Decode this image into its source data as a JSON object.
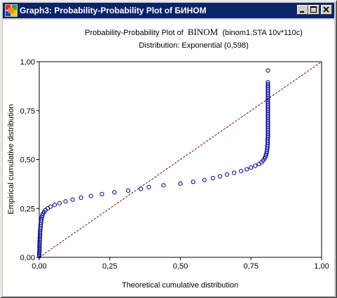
{
  "window": {
    "title": "Graph3: Probability-Probability Plot of БИНОМ",
    "buttons": {
      "minimize": "minimize-icon",
      "maximize": "maximize-icon",
      "close": "close-icon"
    }
  },
  "chart_data": {
    "type": "scatter",
    "title_prefix": "Probability-Probability Plot of",
    "title_series": "BINOM",
    "title_suffix": "(binom1.STA 10v*110c)",
    "subtitle": "Distribution: Exponential (0,598)",
    "xlabel": "Theoretical cumulative distribution",
    "ylabel": "Empirical cumulative distribution",
    "xlim": [
      0,
      1
    ],
    "ylim": [
      0,
      1
    ],
    "xticks": [
      "0,00",
      "0,25",
      "0,50",
      "0,75",
      "1,00"
    ],
    "yticks": [
      "0,00",
      "0,25",
      "0,50",
      "0,75",
      "1,00"
    ],
    "reference_line": {
      "from": [
        0,
        0
      ],
      "to": [
        1,
        1
      ],
      "style": "dashed",
      "color": "#800000"
    },
    "marker_color": "#00008b",
    "points": [
      [
        0.0,
        0.005
      ],
      [
        0.0,
        0.014
      ],
      [
        0.0,
        0.023
      ],
      [
        0.001,
        0.032
      ],
      [
        0.001,
        0.041
      ],
      [
        0.001,
        0.05
      ],
      [
        0.001,
        0.059
      ],
      [
        0.001,
        0.068
      ],
      [
        0.001,
        0.077
      ],
      [
        0.002,
        0.086
      ],
      [
        0.002,
        0.095
      ],
      [
        0.002,
        0.105
      ],
      [
        0.003,
        0.114
      ],
      [
        0.003,
        0.123
      ],
      [
        0.003,
        0.132
      ],
      [
        0.004,
        0.141
      ],
      [
        0.004,
        0.15
      ],
      [
        0.005,
        0.159
      ],
      [
        0.005,
        0.168
      ],
      [
        0.006,
        0.177
      ],
      [
        0.007,
        0.186
      ],
      [
        0.008,
        0.195
      ],
      [
        0.009,
        0.205
      ],
      [
        0.011,
        0.214
      ],
      [
        0.013,
        0.223
      ],
      [
        0.017,
        0.232
      ],
      [
        0.022,
        0.241
      ],
      [
        0.03,
        0.25
      ],
      [
        0.04,
        0.259
      ],
      [
        0.055,
        0.268
      ],
      [
        0.072,
        0.277
      ],
      [
        0.093,
        0.286
      ],
      [
        0.118,
        0.295
      ],
      [
        0.148,
        0.305
      ],
      [
        0.183,
        0.314
      ],
      [
        0.222,
        0.323
      ],
      [
        0.266,
        0.332
      ],
      [
        0.315,
        0.341
      ],
      [
        0.36,
        0.35
      ],
      [
        0.388,
        0.359
      ],
      [
        0.44,
        0.368
      ],
      [
        0.5,
        0.377
      ],
      [
        0.545,
        0.386
      ],
      [
        0.585,
        0.395
      ],
      [
        0.615,
        0.405
      ],
      [
        0.64,
        0.414
      ],
      [
        0.665,
        0.423
      ],
      [
        0.69,
        0.432
      ],
      [
        0.715,
        0.441
      ],
      [
        0.735,
        0.45
      ],
      [
        0.75,
        0.459
      ],
      [
        0.765,
        0.468
      ],
      [
        0.778,
        0.477
      ],
      [
        0.787,
        0.486
      ],
      [
        0.793,
        0.495
      ],
      [
        0.798,
        0.505
      ],
      [
        0.801,
        0.514
      ],
      [
        0.803,
        0.523
      ],
      [
        0.805,
        0.532
      ],
      [
        0.806,
        0.541
      ],
      [
        0.807,
        0.55
      ],
      [
        0.808,
        0.559
      ],
      [
        0.808,
        0.568
      ],
      [
        0.809,
        0.577
      ],
      [
        0.809,
        0.586
      ],
      [
        0.809,
        0.595
      ],
      [
        0.809,
        0.605
      ],
      [
        0.81,
        0.614
      ],
      [
        0.81,
        0.623
      ],
      [
        0.81,
        0.632
      ],
      [
        0.81,
        0.641
      ],
      [
        0.81,
        0.65
      ],
      [
        0.81,
        0.659
      ],
      [
        0.81,
        0.668
      ],
      [
        0.81,
        0.677
      ],
      [
        0.81,
        0.686
      ],
      [
        0.81,
        0.695
      ],
      [
        0.81,
        0.705
      ],
      [
        0.81,
        0.714
      ],
      [
        0.81,
        0.723
      ],
      [
        0.81,
        0.732
      ],
      [
        0.81,
        0.741
      ],
      [
        0.81,
        0.75
      ],
      [
        0.81,
        0.759
      ],
      [
        0.81,
        0.768
      ],
      [
        0.81,
        0.777
      ],
      [
        0.81,
        0.786
      ],
      [
        0.81,
        0.795
      ],
      [
        0.81,
        0.805
      ],
      [
        0.81,
        0.814
      ],
      [
        0.81,
        0.823
      ],
      [
        0.81,
        0.832
      ],
      [
        0.81,
        0.841
      ],
      [
        0.81,
        0.85
      ],
      [
        0.81,
        0.859
      ],
      [
        0.81,
        0.868
      ],
      [
        0.81,
        0.877
      ],
      [
        0.81,
        0.886
      ],
      [
        0.81,
        0.895
      ],
      [
        0.81,
        0.955
      ]
    ]
  }
}
